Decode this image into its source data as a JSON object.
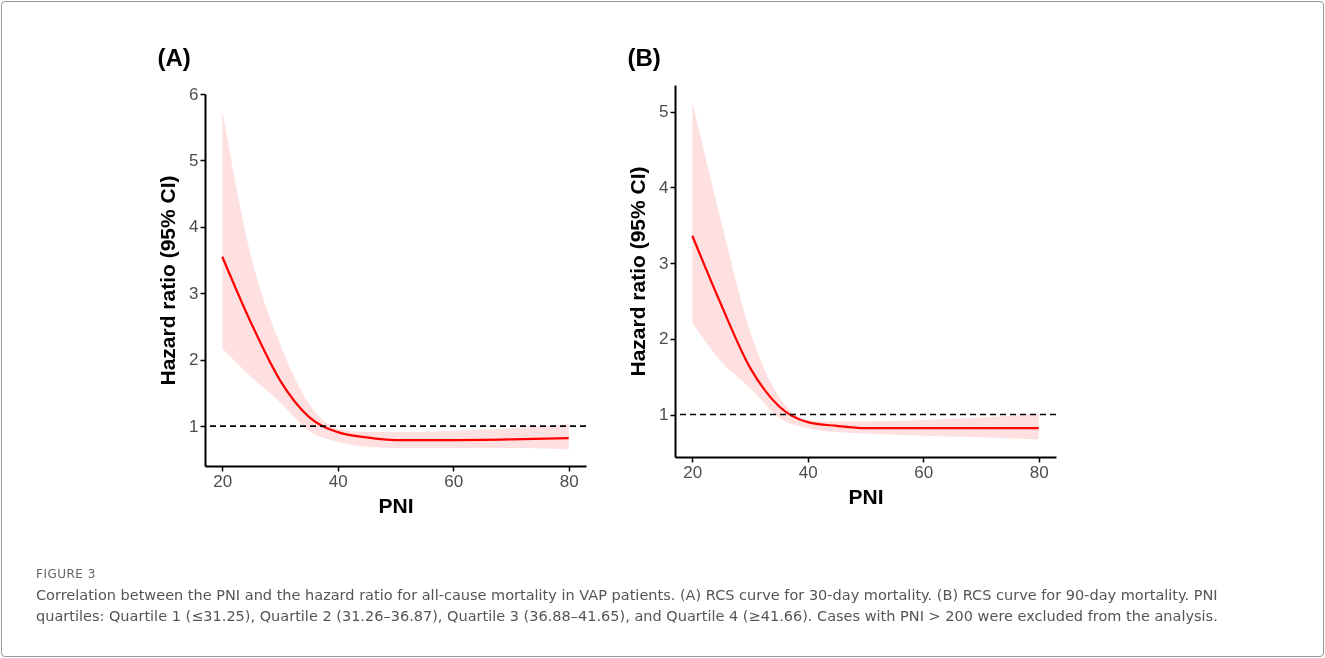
{
  "chart_data": [
    {
      "type": "line",
      "title": "(A)",
      "xlabel": "PNI",
      "ylabel": "Hazard ratio (95% CI)",
      "x": [
        20,
        25,
        30,
        35,
        40,
        45,
        50,
        60,
        70,
        80
      ],
      "series": [
        {
          "color": "#ff0000",
          "values": [
            3.55,
            2.55,
            1.69,
            1.14,
            0.91,
            0.83,
            0.79,
            0.79,
            0.8,
            0.82
          ],
          "lower": [
            2.17,
            1.74,
            1.36,
            0.93,
            0.76,
            0.69,
            0.67,
            0.67,
            0.67,
            0.65
          ],
          "upper": [
            5.75,
            3.55,
            2.24,
            1.34,
            0.96,
            0.91,
            0.91,
            0.93,
            0.97,
            1.03
          ]
        }
      ],
      "xlim": [
        17,
        83
      ],
      "xticks": [
        20,
        40,
        60,
        80
      ],
      "ylim": [
        0.4,
        6.0
      ],
      "yticks": [
        1,
        2,
        3,
        4,
        5,
        6
      ],
      "ref_lines": [
        {
          "axis": "y",
          "value": 1,
          "color": "#000000",
          "line_style": "dashed"
        }
      ],
      "grid": false,
      "marker": "none",
      "line_style": "solid",
      "annotations": [
        "FIGURE 3",
        "Correlation between the PNI and the hazard ratio for all-cause mortality in VAP patients. (A) RCS curve for 30-day mortality. (B) RCS curve for 90-day mortality. PNI quartiles: Quartile 1 (≤31.25), Quartile 2 (31.26–36.87), Quartile 3 (36.88–41.65), and Quartile 4 (≥41.66). Cases with PNI > 200 were excluded from the analysis."
      ]
    },
    {
      "type": "line",
      "title": "(B)",
      "xlabel": "PNI",
      "ylabel": "Hazard ratio (95% CI)",
      "x": [
        20,
        25,
        30,
        35,
        40,
        45,
        50,
        60,
        70,
        80
      ],
      "series": [
        {
          "color": "#ff0000",
          "values": [
            3.36,
            2.45,
            1.62,
            1.11,
            0.9,
            0.85,
            0.82,
            0.82,
            0.82,
            0.82
          ],
          "lower": [
            2.21,
            1.7,
            1.35,
            0.96,
            0.82,
            0.77,
            0.75,
            0.72,
            0.7,
            0.67
          ],
          "upper": [
            5.13,
            3.55,
            2.1,
            1.24,
            0.93,
            0.91,
            0.91,
            0.93,
            0.96,
            1.01
          ]
        }
      ],
      "xlim": [
        17,
        83
      ],
      "xticks": [
        20,
        40,
        60,
        80
      ],
      "ylim": [
        0.44,
        5.35
      ],
      "yticks": [
        1,
        2,
        3,
        4,
        5
      ],
      "ref_lines": [
        {
          "axis": "y",
          "value": 1,
          "color": "#000000",
          "line_style": "dashed"
        }
      ],
      "grid": false,
      "marker": "none",
      "line_style": "solid"
    }
  ]
}
